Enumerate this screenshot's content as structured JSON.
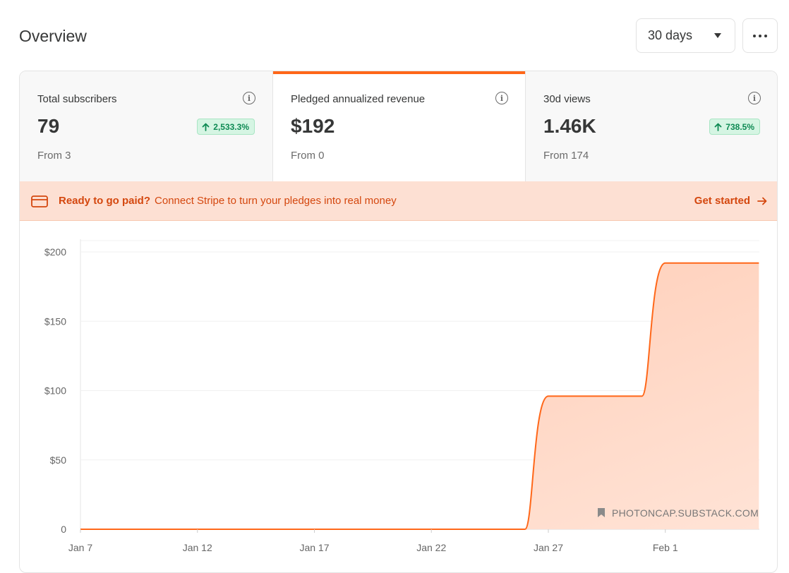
{
  "header": {
    "title": "Overview",
    "range_value": "30 days"
  },
  "stats": [
    {
      "label": "Total subscribers",
      "value": "79",
      "delta": "2,533.3%",
      "from": "From 3"
    },
    {
      "label": "Pledged annualized revenue",
      "value": "$192",
      "delta": "",
      "from": "From 0"
    },
    {
      "label": "30d views",
      "value": "1.46K",
      "delta": "738.5%",
      "from": "From 174"
    }
  ],
  "banner": {
    "headline": "Ready to go paid?",
    "message": "Connect Stripe to turn your pledges into real money",
    "cta": "Get started"
  },
  "chart_data": {
    "type": "area",
    "title": "",
    "xlabel": "",
    "ylabel": "",
    "ylim": [
      0,
      200
    ],
    "y_ticks": [
      "$200",
      "$150",
      "$100",
      "$50",
      "0"
    ],
    "y_tick_values": [
      200,
      150,
      100,
      50,
      0
    ],
    "x_ticks": [
      "Jan 7",
      "Jan 12",
      "Jan 17",
      "Jan 22",
      "Jan 27",
      "Feb 1"
    ],
    "points": [
      {
        "x": "Jan 7",
        "y": 0
      },
      {
        "x": "Jan 26",
        "y": 0
      },
      {
        "x": "Jan 27",
        "y": 96
      },
      {
        "x": "Jan 31",
        "y": 96
      },
      {
        "x": "Feb 1",
        "y": 192
      },
      {
        "x": "Feb 5",
        "y": 192
      }
    ],
    "grid": true,
    "color": "#ff6719",
    "fill_color": "#ffd4bf",
    "watermark": "PHOTONCAP.SUBSTACK.COM"
  },
  "colors": {
    "accent": "#ff6719",
    "positive_bg": "#d5f5e3",
    "positive_text": "#0e8a53",
    "banner_bg": "#fde0d3",
    "banner_text": "#d4470e"
  }
}
